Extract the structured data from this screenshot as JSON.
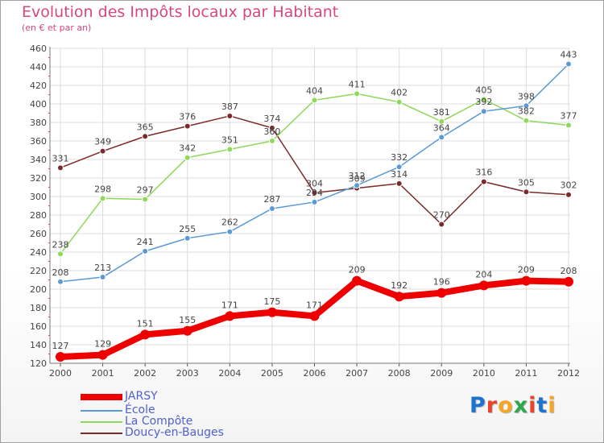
{
  "title": "Evolution des Impôts locaux par Habitant",
  "subtitle": "(en € et par an)",
  "logo": {
    "text": "Proxiti",
    "letter_colors": [
      "#1e73d2",
      "#e8452c",
      "#f5a623",
      "#2aa84a",
      "#e8452c",
      "#1e73d2",
      "#f5a623"
    ]
  },
  "chart_data": {
    "type": "line",
    "title": "Evolution des Impôts locaux par Habitant",
    "subtitle": "(en € et par an)",
    "x": [
      "2000",
      "2001",
      "2002",
      "2003",
      "2004",
      "2005",
      "2006",
      "2007",
      "2008",
      "2009",
      "2010",
      "2011",
      "2012"
    ],
    "ylim": [
      120,
      460
    ],
    "yticks": [
      120,
      140,
      160,
      180,
      200,
      220,
      240,
      260,
      280,
      300,
      320,
      340,
      360,
      380,
      400,
      420,
      440,
      460
    ],
    "grid": true,
    "legend_position": "bottom-left",
    "series": [
      {
        "name": "JARSY",
        "color": "#ee0000",
        "values": [
          127,
          129,
          151,
          155,
          171,
          175,
          171,
          209,
          192,
          196,
          204,
          209,
          208
        ]
      },
      {
        "name": "École",
        "color": "#5b9bd5",
        "values": [
          208,
          213,
          241,
          255,
          262,
          287,
          294,
          312,
          332,
          364,
          392,
          398,
          443
        ]
      },
      {
        "name": "La Compôte",
        "color": "#8fd85a",
        "values": [
          238,
          298,
          297,
          342,
          351,
          360,
          404,
          411,
          402,
          381,
          405,
          382,
          377
        ]
      },
      {
        "name": "Doucy-en-Bauges",
        "color": "#7a2a2a",
        "values": [
          331,
          349,
          365,
          376,
          387,
          374,
          304,
          309,
          314,
          270,
          316,
          305,
          302
        ]
      }
    ]
  }
}
